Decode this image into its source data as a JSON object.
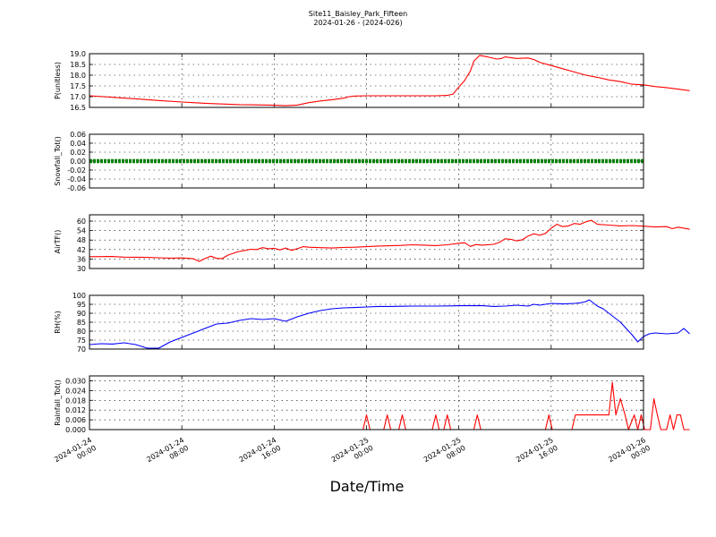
{
  "title": "Site11_Baisley_Park_Fifteen",
  "subtitle": "2024-01-26 - (2024-026)",
  "chart_data": {
    "type": "line",
    "xlabel": "Date/Time",
    "x_range": [
      "2024-01-24 00:00",
      "2024-01-26 00:00"
    ],
    "x_ticks": [
      {
        "l1": "2024-01-24",
        "l2": "00:00"
      },
      {
        "l1": "2024-01-24",
        "l2": "08:00"
      },
      {
        "l1": "2024-01-24",
        "l2": "16:00"
      },
      {
        "l1": "2024-01-25",
        "l2": "00:00"
      },
      {
        "l1": "2024-01-25",
        "l2": "08:00"
      },
      {
        "l1": "2024-01-25",
        "l2": "16:00"
      },
      {
        "l1": "2024-01-26",
        "l2": "00:00"
      }
    ],
    "grid": true,
    "panels": [
      {
        "ylabel": "P(unitless)",
        "ylim": [
          16.5,
          19.0
        ],
        "yticks": [
          "16.5",
          "17.0",
          "17.5",
          "18.0",
          "18.5",
          "19.0"
        ],
        "color": "#ff0000",
        "series_points": [
          [
            0,
            17.04
          ],
          [
            2,
            16.97
          ],
          [
            4,
            16.9
          ],
          [
            6,
            16.82
          ],
          [
            8,
            16.75
          ],
          [
            9,
            16.72
          ],
          [
            10,
            16.69
          ],
          [
            11,
            16.67
          ],
          [
            12,
            16.65
          ],
          [
            13,
            16.63
          ],
          [
            14,
            16.62
          ],
          [
            16,
            16.6
          ],
          [
            17,
            16.58
          ],
          [
            18,
            16.61
          ],
          [
            19,
            16.72
          ],
          [
            20,
            16.8
          ],
          [
            21,
            16.86
          ],
          [
            22,
            16.93
          ],
          [
            22.5,
            17.0
          ],
          [
            23,
            17.03
          ],
          [
            24,
            17.04
          ],
          [
            27,
            17.04
          ],
          [
            30,
            17.04
          ],
          [
            31,
            17.06
          ],
          [
            31.5,
            17.12
          ],
          [
            32,
            17.45
          ],
          [
            32.5,
            17.75
          ],
          [
            33,
            18.2
          ],
          [
            33.3,
            18.65
          ],
          [
            33.8,
            18.92
          ],
          [
            34.5,
            18.85
          ],
          [
            35.3,
            18.75
          ],
          [
            35.7,
            18.78
          ],
          [
            36,
            18.85
          ],
          [
            37,
            18.78
          ],
          [
            38,
            18.8
          ],
          [
            38.5,
            18.73
          ],
          [
            39,
            18.6
          ],
          [
            40,
            18.45
          ],
          [
            41,
            18.3
          ],
          [
            42,
            18.15
          ],
          [
            43,
            18.0
          ],
          [
            44,
            17.9
          ],
          [
            45,
            17.78
          ],
          [
            46,
            17.7
          ],
          [
            47,
            17.58
          ],
          [
            48,
            17.55
          ],
          [
            49,
            17.47
          ],
          [
            50,
            17.42
          ],
          [
            51,
            17.35
          ],
          [
            52,
            17.28
          ]
        ]
      },
      {
        "ylabel": "Snowfall_Tot()",
        "ylim": [
          -0.06,
          0.06
        ],
        "yticks": [
          "-0.06",
          "-0.04",
          "-0.02",
          "0.00",
          "0.02",
          "0.04",
          "0.06"
        ],
        "color": "#008000",
        "constant_value": 0.0,
        "marker": "dots"
      },
      {
        "ylabel": "AirTF()",
        "ylim": [
          30,
          64
        ],
        "yticks": [
          "30",
          "36",
          "42",
          "48",
          "54",
          "60"
        ],
        "color": "#ff0000",
        "series_points": [
          [
            0,
            37.5
          ],
          [
            2,
            37.6
          ],
          [
            3,
            37.2
          ],
          [
            5,
            37.0
          ],
          [
            6,
            36.8
          ],
          [
            7,
            36.6
          ],
          [
            8,
            36.7
          ],
          [
            9,
            36.2
          ],
          [
            9.5,
            34.5
          ],
          [
            10,
            36.3
          ],
          [
            10.5,
            37.8
          ],
          [
            11,
            36.4
          ],
          [
            11.5,
            36.3
          ],
          [
            12,
            38.5
          ],
          [
            12.8,
            40.5
          ],
          [
            13.5,
            41.5
          ],
          [
            14,
            42.2
          ],
          [
            14.5,
            42.0
          ],
          [
            15,
            43.2
          ],
          [
            15.5,
            42.5
          ],
          [
            16,
            42.8
          ],
          [
            16.5,
            41.8
          ],
          [
            17,
            43.0
          ],
          [
            17.5,
            41.5
          ],
          [
            18,
            42.5
          ],
          [
            18.5,
            43.8
          ],
          [
            19,
            43.5
          ],
          [
            20,
            43.2
          ],
          [
            21,
            43.0
          ],
          [
            22,
            43.3
          ],
          [
            23,
            43.5
          ],
          [
            24,
            43.8
          ],
          [
            25,
            44.2
          ],
          [
            26,
            44.4
          ],
          [
            27,
            44.6
          ],
          [
            28,
            45.0
          ],
          [
            29,
            44.8
          ],
          [
            30,
            44.5
          ],
          [
            31,
            45.0
          ],
          [
            32,
            46.0
          ],
          [
            32.5,
            46.3
          ],
          [
            33,
            44.0
          ],
          [
            33.5,
            45.2
          ],
          [
            34,
            44.8
          ],
          [
            35,
            45.3
          ],
          [
            35.5,
            46.5
          ],
          [
            36,
            48.8
          ],
          [
            36.5,
            48.5
          ],
          [
            37,
            47.5
          ],
          [
            37.5,
            48.2
          ],
          [
            38,
            50.5
          ],
          [
            38.5,
            52.0
          ],
          [
            39,
            51.0
          ],
          [
            39.5,
            52.2
          ],
          [
            40,
            55.5
          ],
          [
            40.5,
            58.0
          ],
          [
            41,
            56.5
          ],
          [
            41.5,
            57.0
          ],
          [
            42,
            58.5
          ],
          [
            42.5,
            58.0
          ],
          [
            43,
            59.5
          ],
          [
            43.5,
            60.5
          ],
          [
            44,
            58.0
          ],
          [
            45,
            57.5
          ],
          [
            46,
            57.0
          ],
          [
            47,
            57.2
          ],
          [
            48,
            56.8
          ],
          [
            49,
            56.3
          ],
          [
            50,
            56.5
          ],
          [
            50.5,
            55.2
          ],
          [
            51,
            56.2
          ],
          [
            52,
            54.8
          ]
        ]
      },
      {
        "ylabel": "RH(%)",
        "ylim": [
          70,
          100
        ],
        "yticks": [
          "70",
          "75",
          "80",
          "85",
          "90",
          "95",
          "100"
        ],
        "color": "#0000ff",
        "series_points": [
          [
            0,
            72.5
          ],
          [
            1,
            73
          ],
          [
            2,
            72.8
          ],
          [
            3,
            73.5
          ],
          [
            4,
            72.5
          ],
          [
            5,
            70.5
          ],
          [
            6,
            70.5
          ],
          [
            7,
            74
          ],
          [
            8,
            76.5
          ],
          [
            9,
            79
          ],
          [
            10,
            81.5
          ],
          [
            11,
            84
          ],
          [
            12,
            84.5
          ],
          [
            13,
            86
          ],
          [
            14,
            87
          ],
          [
            15,
            86.5
          ],
          [
            16,
            87
          ],
          [
            17,
            85.5
          ],
          [
            18,
            88
          ],
          [
            19,
            90
          ],
          [
            20,
            91.5
          ],
          [
            21,
            92.5
          ],
          [
            22,
            93
          ],
          [
            23,
            93.2
          ],
          [
            24,
            93.5
          ],
          [
            25,
            93.8
          ],
          [
            26,
            93.8
          ],
          [
            27,
            93.9
          ],
          [
            28,
            94
          ],
          [
            30,
            94
          ],
          [
            32,
            94.2
          ],
          [
            34,
            94.3
          ],
          [
            35,
            93.8
          ],
          [
            36,
            94
          ],
          [
            37,
            94.5
          ],
          [
            38,
            94
          ],
          [
            38.5,
            95
          ],
          [
            39,
            94.5
          ],
          [
            40,
            95.5
          ],
          [
            41,
            95.2
          ],
          [
            42,
            95.5
          ],
          [
            42.5,
            95.8
          ],
          [
            43,
            96.5
          ],
          [
            43.3,
            97.5
          ],
          [
            43.6,
            96
          ],
          [
            44,
            94
          ],
          [
            44.5,
            92.5
          ],
          [
            45,
            90
          ],
          [
            46,
            85
          ],
          [
            47,
            78
          ],
          [
            47.5,
            74
          ],
          [
            48,
            77
          ],
          [
            48.5,
            78.5
          ],
          [
            49,
            79
          ],
          [
            50,
            78.5
          ],
          [
            51,
            79
          ],
          [
            51.5,
            81.5
          ],
          [
            52,
            78.5
          ]
        ]
      },
      {
        "ylabel": "Rainfall_Tot()",
        "ylim": [
          0,
          0.033
        ],
        "yticks": [
          "0.000",
          "0.006",
          "0.012",
          "0.018",
          "0.024",
          "0.030"
        ],
        "color": "#ff0000",
        "series_points": [
          [
            0,
            0
          ],
          [
            23.7,
            0
          ],
          [
            24,
            0.009
          ],
          [
            24.3,
            0
          ],
          [
            25.5,
            0
          ],
          [
            25.8,
            0.009
          ],
          [
            26.1,
            0
          ],
          [
            26.8,
            0
          ],
          [
            27.1,
            0.009
          ],
          [
            27.4,
            0
          ],
          [
            29.7,
            0
          ],
          [
            30,
            0.009
          ],
          [
            30.3,
            0
          ],
          [
            30.7,
            0
          ],
          [
            31,
            0.009
          ],
          [
            31.3,
            0
          ],
          [
            33.3,
            0
          ],
          [
            33.6,
            0.009
          ],
          [
            33.9,
            0
          ],
          [
            39.5,
            0
          ],
          [
            39.8,
            0.009
          ],
          [
            40.1,
            0
          ],
          [
            41.8,
            0
          ],
          [
            42.1,
            0.009
          ],
          [
            42.4,
            0.009
          ],
          [
            45,
            0.009
          ],
          [
            45.3,
            0.029
          ],
          [
            45.6,
            0.009
          ],
          [
            46,
            0.019
          ],
          [
            46.4,
            0.009
          ],
          [
            46.7,
            0
          ],
          [
            47.2,
            0.009
          ],
          [
            47.5,
            0
          ],
          [
            47.8,
            0.009
          ],
          [
            48.1,
            0
          ],
          [
            48.6,
            0
          ],
          [
            48.9,
            0.019
          ],
          [
            49.2,
            0.009
          ],
          [
            49.5,
            0
          ],
          [
            50,
            0
          ],
          [
            50.3,
            0.009
          ],
          [
            50.6,
            0
          ],
          [
            50.9,
            0.009
          ],
          [
            51.2,
            0.009
          ],
          [
            51.5,
            0
          ],
          [
            52,
            0
          ]
        ]
      }
    ]
  }
}
